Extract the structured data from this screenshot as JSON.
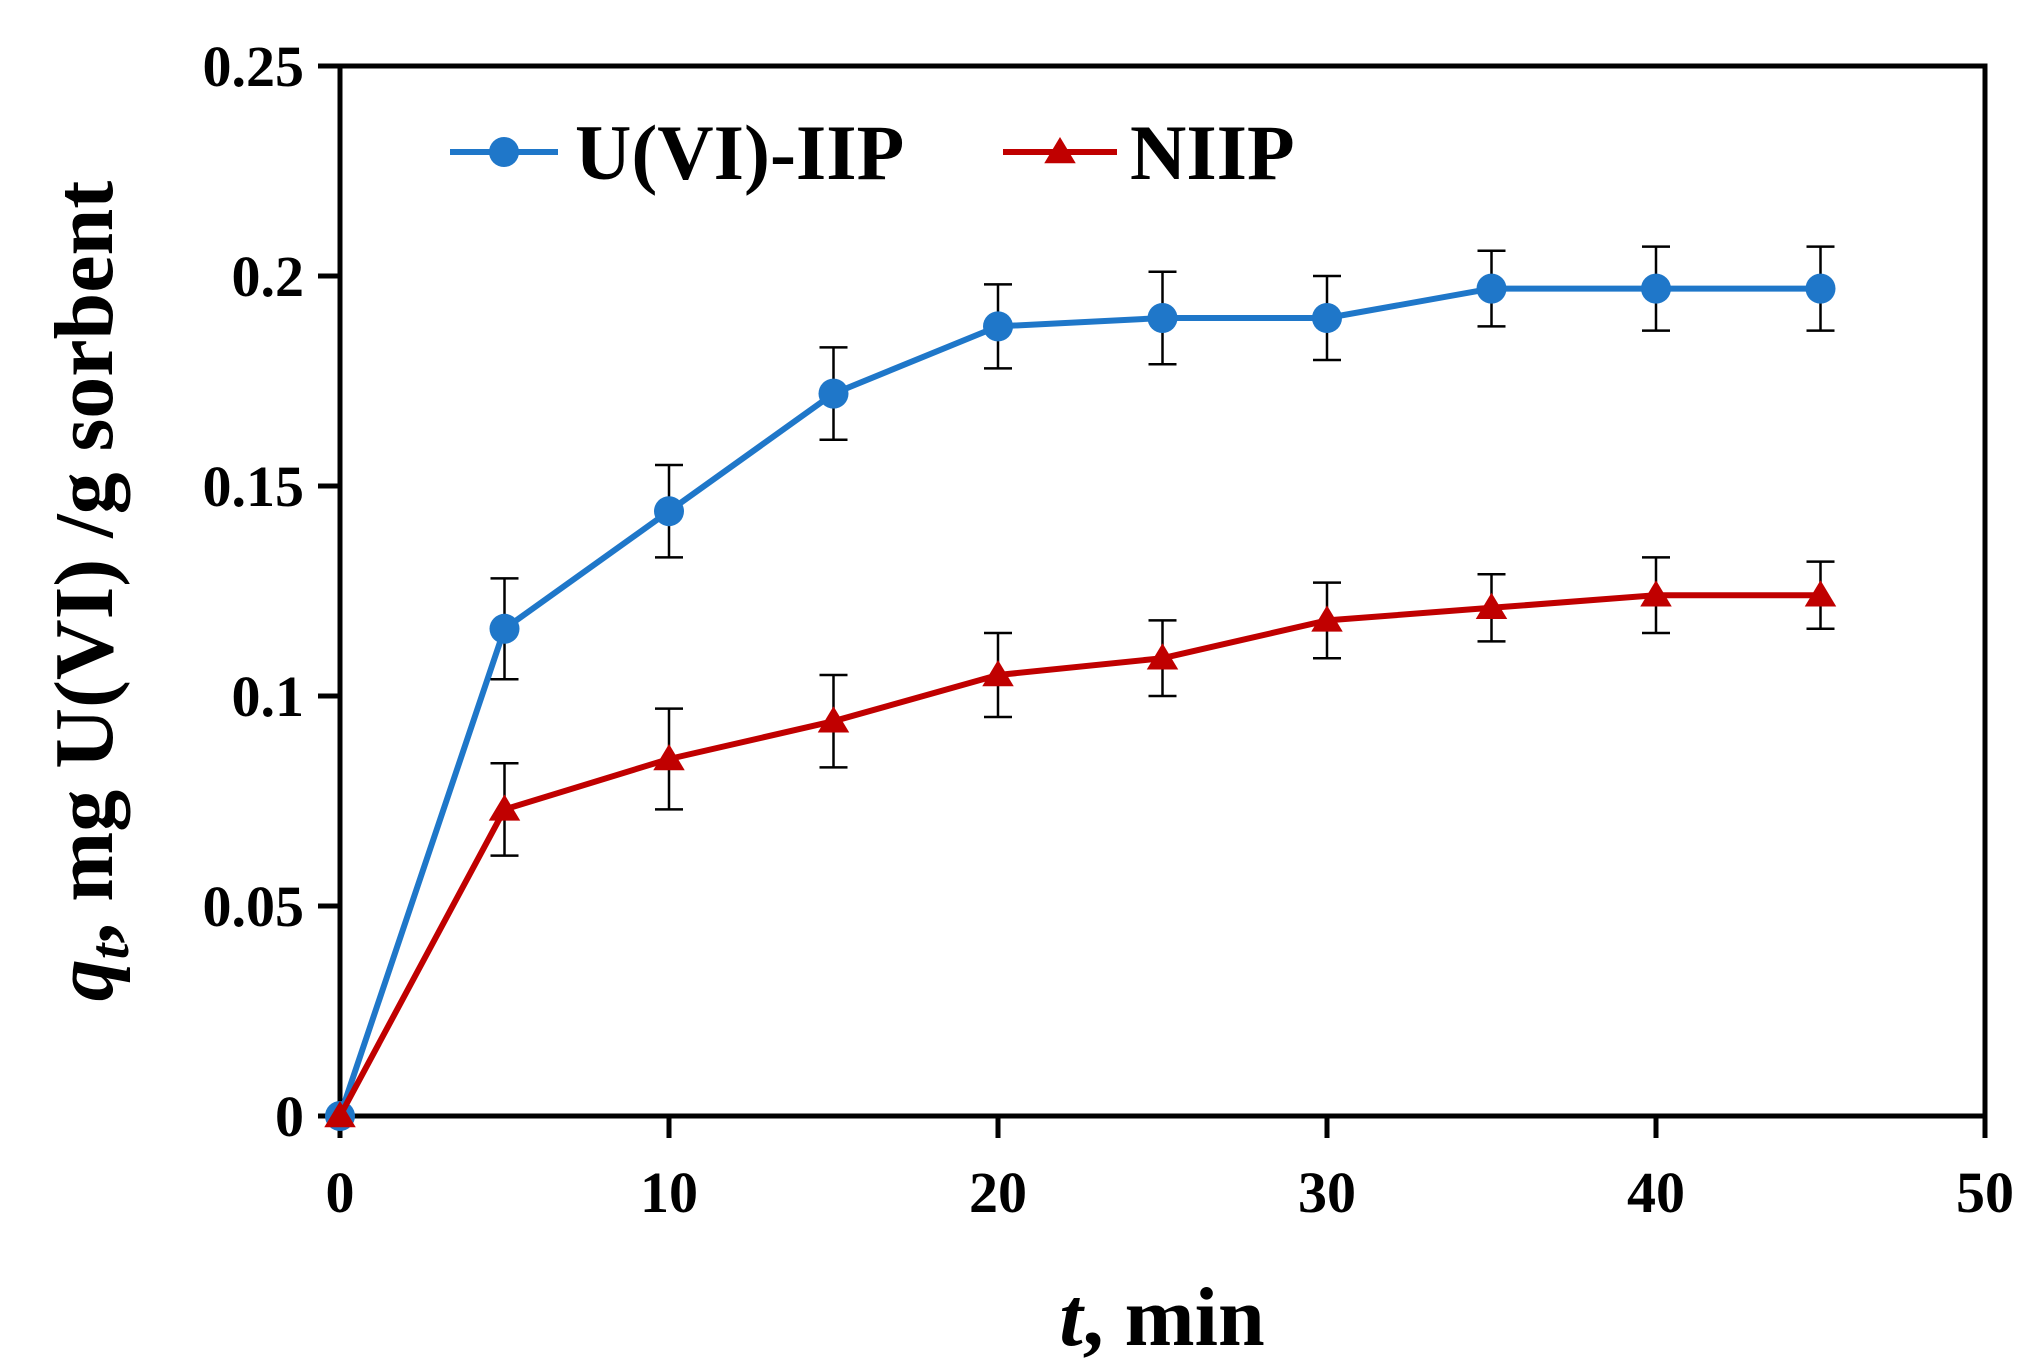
{
  "chart_data": {
    "type": "line",
    "title": "",
    "xlabel": {
      "italic": "t",
      "rest": ", min"
    },
    "ylabel": {
      "italic": "q",
      "subscript": "t",
      "rest": ", mg U(VI) /g sorbent"
    },
    "xlim": [
      0,
      50
    ],
    "ylim": [
      0,
      0.25
    ],
    "xticks": [
      0,
      10,
      20,
      30,
      40,
      50
    ],
    "yticks": [
      0,
      0.05,
      0.1,
      0.15,
      0.2,
      0.25
    ],
    "xtick_labels": [
      "0",
      "10",
      "20",
      "30",
      "40",
      "50"
    ],
    "ytick_labels": [
      "0",
      "0.05",
      "0.1",
      "0.15",
      "0.2",
      "0.25"
    ],
    "grid": false,
    "legend_position": "top-left",
    "x": [
      0,
      5,
      10,
      15,
      20,
      25,
      30,
      35,
      40,
      45
    ],
    "series": [
      {
        "name": "U(VI)-IIP",
        "color": "#1F77C9",
        "marker": "circle",
        "values": [
          0,
          0.116,
          0.144,
          0.172,
          0.188,
          0.19,
          0.19,
          0.197,
          0.197,
          0.197
        ],
        "errors": [
          0,
          0.012,
          0.011,
          0.011,
          0.01,
          0.011,
          0.01,
          0.009,
          0.01,
          0.01
        ]
      },
      {
        "name": "NIIP",
        "color": "#C00000",
        "marker": "triangle",
        "values": [
          0,
          0.073,
          0.085,
          0.094,
          0.105,
          0.109,
          0.118,
          0.121,
          0.124,
          0.124
        ],
        "errors": [
          0,
          0.011,
          0.012,
          0.011,
          0.01,
          0.009,
          0.009,
          0.008,
          0.009,
          0.008
        ]
      }
    ]
  }
}
